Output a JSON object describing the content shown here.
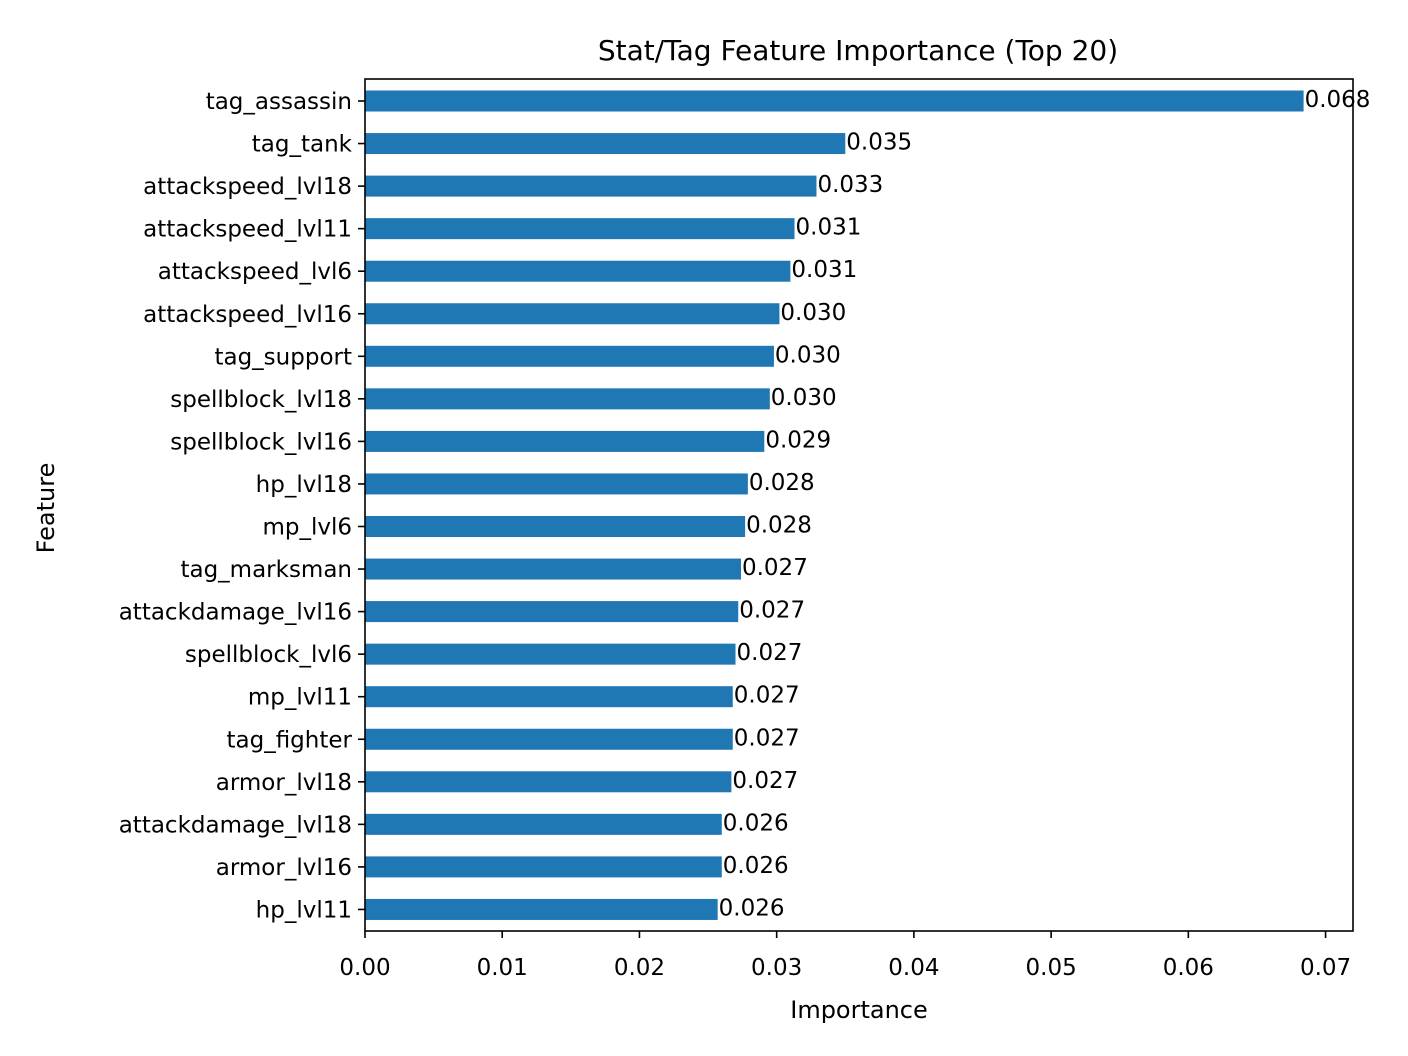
{
  "chart_data": {
    "type": "bar",
    "orientation": "horizontal",
    "title": "Stat/Tag Feature Importance (Top 20)",
    "xlabel": "Importance",
    "ylabel": "Feature",
    "xlim": [
      0,
      0.072
    ],
    "xticks": [
      0.0,
      0.01,
      0.02,
      0.03,
      0.04,
      0.05,
      0.06,
      0.07
    ],
    "xtick_labels": [
      "0.00",
      "0.01",
      "0.02",
      "0.03",
      "0.04",
      "0.05",
      "0.06",
      "0.07"
    ],
    "bar_color": "#1f77b4",
    "grid": false,
    "categories": [
      "tag_assassin",
      "tag_tank",
      "attackspeed_lvl18",
      "attackspeed_lvl11",
      "attackspeed_lvl6",
      "attackspeed_lvl16",
      "tag_support",
      "spellblock_lvl18",
      "spellblock_lvl16",
      "hp_lvl18",
      "mp_lvl6",
      "tag_marksman",
      "attackdamage_lvl16",
      "spellblock_lvl6",
      "mp_lvl11",
      "tag_fighter",
      "armor_lvl18",
      "attackdamage_lvl18",
      "armor_lvl16",
      "hp_lvl11"
    ],
    "values": [
      0.0684,
      0.035,
      0.0329,
      0.0313,
      0.031,
      0.0302,
      0.0298,
      0.0295,
      0.0291,
      0.0279,
      0.0277,
      0.0274,
      0.0272,
      0.027,
      0.0268,
      0.0268,
      0.0267,
      0.026,
      0.026,
      0.0257
    ],
    "data_labels": [
      "0.068",
      "0.035",
      "0.033",
      "0.031",
      "0.031",
      "0.030",
      "0.030",
      "0.030",
      "0.029",
      "0.028",
      "0.028",
      "0.027",
      "0.027",
      "0.027",
      "0.027",
      "0.027",
      "0.027",
      "0.026",
      "0.026",
      "0.026"
    ]
  }
}
